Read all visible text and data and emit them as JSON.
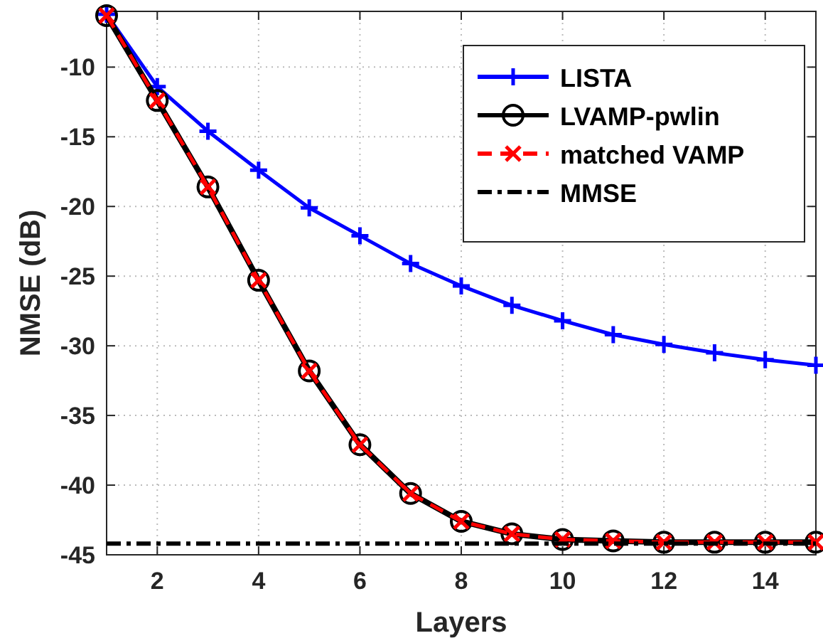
{
  "chart_data": {
    "type": "line",
    "xlabel": "Layers",
    "ylabel": "NMSE (dB)",
    "x": [
      1,
      2,
      3,
      4,
      5,
      6,
      7,
      8,
      9,
      10,
      11,
      12,
      13,
      14,
      15
    ],
    "xlim": [
      1,
      15
    ],
    "xticks": [
      2,
      4,
      6,
      8,
      10,
      12,
      14
    ],
    "ylim": [
      -45,
      -6
    ],
    "yticks": [
      -45,
      -40,
      -35,
      -30,
      -25,
      -20,
      -15,
      -10
    ],
    "grid": true,
    "legend": "top right",
    "series": [
      {
        "name": "LISTA",
        "color": "#0000ff",
        "marker": "plus",
        "line_style": "solid",
        "values": [
          -6.2,
          -11.4,
          -14.6,
          -17.4,
          -20.1,
          -22.1,
          -24.1,
          -25.7,
          -27.1,
          -28.2,
          -29.2,
          -29.9,
          -30.5,
          -31.0,
          -31.4
        ]
      },
      {
        "name": "LVAMP-pwlin",
        "color": "#000000",
        "marker": "circle",
        "line_style": "solid",
        "values": [
          -6.3,
          -12.4,
          -18.6,
          -25.3,
          -31.8,
          -37.1,
          -40.6,
          -42.6,
          -43.5,
          -43.9,
          -44.0,
          -44.1,
          -44.1,
          -44.1,
          -44.1
        ]
      },
      {
        "name": "matched VAMP",
        "color": "#ff0000",
        "marker": "cross",
        "line_style": "dashed",
        "values": [
          -6.3,
          -12.4,
          -18.6,
          -25.3,
          -31.8,
          -37.1,
          -40.6,
          -42.6,
          -43.5,
          -43.9,
          -44.0,
          -44.1,
          -44.1,
          -44.1,
          -44.1
        ]
      },
      {
        "name": "MMSE",
        "color": "#000000",
        "marker": "none",
        "line_style": "dashdot",
        "values": [
          -44.2,
          -44.2,
          -44.2,
          -44.2,
          -44.2,
          -44.2,
          -44.2,
          -44.2,
          -44.2,
          -44.2,
          -44.2,
          -44.2,
          -44.2,
          -44.2,
          -44.2
        ]
      }
    ]
  }
}
